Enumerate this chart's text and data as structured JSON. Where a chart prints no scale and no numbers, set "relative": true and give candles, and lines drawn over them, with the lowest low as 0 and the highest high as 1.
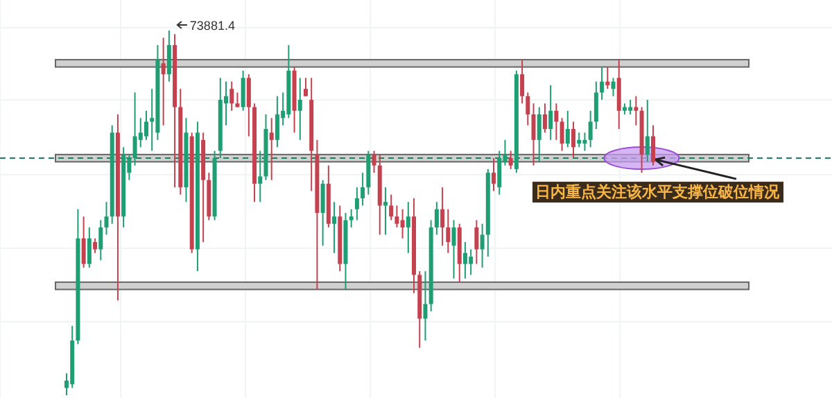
{
  "chart_data": {
    "type": "candlestick",
    "relative": true,
    "categories": [
      null,
      null,
      null,
      null,
      null,
      null,
      null,
      null,
      null,
      null,
      null,
      null,
      null,
      null,
      null,
      null,
      null,
      null,
      null,
      null,
      null,
      null,
      null,
      null,
      null,
      null,
      null,
      null,
      null,
      null,
      null,
      null,
      null,
      null,
      null,
      null,
      null,
      null,
      null,
      null,
      null,
      null,
      null,
      null,
      null,
      null,
      null,
      null,
      null,
      null,
      null,
      null,
      null,
      null,
      null,
      null,
      null,
      null,
      null,
      null,
      null,
      null,
      null,
      null,
      null,
      null,
      null,
      null,
      null,
      null,
      null,
      null,
      null,
      null,
      null,
      null,
      null,
      null,
      null,
      null,
      null,
      null,
      null,
      null,
      null,
      null,
      null,
      null,
      null,
      null,
      null,
      null,
      null,
      null,
      null,
      null,
      null,
      null,
      null,
      null,
      null,
      null,
      null,
      null
    ],
    "ohlc": [
      [
        0.02,
        0.06,
        0,
        0.04
      ],
      [
        0.03,
        0.19,
        0.02,
        0.15
      ],
      [
        0.15,
        0.51,
        0.14,
        0.43
      ],
      [
        0.43,
        0.49,
        0.35,
        0.36
      ],
      [
        0.36,
        0.46,
        0.35,
        0.43
      ],
      [
        0.42,
        0.43,
        0.39,
        0.4
      ],
      [
        0.4,
        0.48,
        0.37,
        0.46
      ],
      [
        0.46,
        0.53,
        0.44,
        0.49
      ],
      [
        0.49,
        0.74,
        0.47,
        0.72
      ],
      [
        0.72,
        0.77,
        0.26,
        0.49
      ],
      [
        0.49,
        0.68,
        0.46,
        0.66
      ],
      [
        0.61,
        0.66,
        0.59,
        0.65
      ],
      [
        0.65,
        0.83,
        0.63,
        0.71
      ],
      [
        0.7,
        0.76,
        0.68,
        0.72
      ],
      [
        0.71,
        0.78,
        0.7,
        0.75
      ],
      [
        0.75,
        0.84,
        0.67,
        0.76
      ],
      [
        0.72,
        0.96,
        0.7,
        0.92
      ],
      [
        0.91,
        0.98,
        0.74,
        0.88
      ],
      [
        0.88,
        1.0,
        0.86,
        0.96
      ],
      [
        0.96,
        0.99,
        0.57,
        0.79
      ],
      [
        0.79,
        0.84,
        0.55,
        0.57
      ],
      [
        0.57,
        0.76,
        0.53,
        0.72
      ],
      [
        0.71,
        0.72,
        0.39,
        0.4
      ],
      [
        0.4,
        0.75,
        0.34,
        0.72
      ],
      [
        0.7,
        0.72,
        0.42,
        0.59
      ],
      [
        0.59,
        0.61,
        0.48,
        0.49
      ],
      [
        0.49,
        0.67,
        0.48,
        0.65
      ],
      [
        0.67,
        0.87,
        0.65,
        0.81
      ],
      [
        0.8,
        0.86,
        0.74,
        0.82
      ],
      [
        0.84,
        0.86,
        0.78,
        0.8
      ],
      [
        0.8,
        0.83,
        0.79,
        0.79
      ],
      [
        0.79,
        0.89,
        0.78,
        0.87
      ],
      [
        0.87,
        0.88,
        0.71,
        0.79
      ],
      [
        0.79,
        0.8,
        0.53,
        0.58
      ],
      [
        0.58,
        0.67,
        0.53,
        0.6
      ],
      [
        0.6,
        0.77,
        0.59,
        0.73
      ],
      [
        0.72,
        0.76,
        0.59,
        0.7
      ],
      [
        0.7,
        0.82,
        0.68,
        0.77
      ],
      [
        0.76,
        0.83,
        0.74,
        0.78
      ],
      [
        0.77,
        0.96,
        0.76,
        0.89
      ],
      [
        0.89,
        0.9,
        0.72,
        0.78
      ],
      [
        0.78,
        0.87,
        0.7,
        0.81
      ],
      [
        0.84,
        0.87,
        0.82,
        0.82
      ],
      [
        0.81,
        0.87,
        0.56,
        0.67
      ],
      [
        0.66,
        0.7,
        0.29,
        0.5
      ],
      [
        0.5,
        0.59,
        0.41,
        0.58
      ],
      [
        0.58,
        0.63,
        0.46,
        0.47
      ],
      [
        0.47,
        0.53,
        0.39,
        0.49
      ],
      [
        0.49,
        0.52,
        0.34,
        0.36
      ],
      [
        0.36,
        0.5,
        0.29,
        0.48
      ],
      [
        0.48,
        0.51,
        0.46,
        0.49
      ],
      [
        0.51,
        0.57,
        0.48,
        0.54
      ],
      [
        0.54,
        0.61,
        0.52,
        0.57
      ],
      [
        0.57,
        0.67,
        0.55,
        0.66
      ],
      [
        0.66,
        0.67,
        0.61,
        0.63
      ],
      [
        0.63,
        0.66,
        0.44,
        0.52
      ],
      [
        0.52,
        0.57,
        0.44,
        0.53
      ],
      [
        0.52,
        0.55,
        0.48,
        0.49
      ],
      [
        0.49,
        0.52,
        0.46,
        0.47
      ],
      [
        0.48,
        0.51,
        0.43,
        0.46
      ],
      [
        0.46,
        0.53,
        0.39,
        0.49
      ],
      [
        0.49,
        0.54,
        0.28,
        0.33
      ],
      [
        0.33,
        0.34,
        0.13,
        0.21
      ],
      [
        0.21,
        0.34,
        0.15,
        0.25
      ],
      [
        0.25,
        0.48,
        0.23,
        0.46
      ],
      [
        0.46,
        0.53,
        0.44,
        0.51
      ],
      [
        0.51,
        0.57,
        0.41,
        0.46
      ],
      [
        0.46,
        0.51,
        0.39,
        0.42
      ],
      [
        0.41,
        0.48,
        0.32,
        0.46
      ],
      [
        0.46,
        0.47,
        0.31,
        0.36
      ],
      [
        0.36,
        0.42,
        0.32,
        0.39
      ],
      [
        0.36,
        0.4,
        0.33,
        0.38
      ],
      [
        0.46,
        0.48,
        0.36,
        0.4
      ],
      [
        0.4,
        0.47,
        0.35,
        0.44
      ],
      [
        0.44,
        0.62,
        0.38,
        0.61
      ],
      [
        0.61,
        0.65,
        0.56,
        0.58
      ],
      [
        0.57,
        0.67,
        0.55,
        0.65
      ],
      [
        0.64,
        0.7,
        0.63,
        0.66
      ],
      [
        0.65,
        0.67,
        0.62,
        0.63
      ],
      [
        0.62,
        0.89,
        0.61,
        0.88
      ],
      [
        0.88,
        0.92,
        0.8,
        0.82
      ],
      [
        0.82,
        0.83,
        0.74,
        0.77
      ],
      [
        0.77,
        0.8,
        0.63,
        0.7
      ],
      [
        0.7,
        0.79,
        0.64,
        0.77
      ],
      [
        0.77,
        0.8,
        0.72,
        0.73
      ],
      [
        0.73,
        0.85,
        0.7,
        0.78
      ],
      [
        0.78,
        0.8,
        0.7,
        0.75
      ],
      [
        0.75,
        0.76,
        0.67,
        0.69
      ],
      [
        0.69,
        0.78,
        0.68,
        0.73
      ],
      [
        0.73,
        0.75,
        0.65,
        0.68
      ],
      [
        0.69,
        0.72,
        0.68,
        0.7
      ],
      [
        0.69,
        0.72,
        0.67,
        0.7
      ],
      [
        0.7,
        0.78,
        0.68,
        0.75
      ],
      [
        0.75,
        0.86,
        0.73,
        0.83
      ],
      [
        0.83,
        0.9,
        0.81,
        0.86
      ],
      [
        0.86,
        0.9,
        0.84,
        0.85
      ],
      [
        0.84,
        0.87,
        0.82,
        0.86
      ],
      [
        0.87,
        0.92,
        0.73,
        0.78
      ],
      [
        0.78,
        0.8,
        0.77,
        0.79
      ],
      [
        0.78,
        0.81,
        0.77,
        0.79
      ],
      [
        0.79,
        0.82,
        0.74,
        0.78
      ],
      [
        0.78,
        0.79,
        0.61,
        0.66
      ],
      [
        0.66,
        0.81,
        0.64,
        0.71
      ],
      [
        0.71,
        0.74,
        0.63,
        0.64
      ]
    ],
    "bands": [
      {
        "axis": "y",
        "from": 0.9,
        "to": 0.92,
        "color": "#d0d0d0"
      },
      {
        "axis": "y",
        "from": 0.64,
        "to": 0.66,
        "color": "#d0d0d0"
      },
      {
        "axis": "y",
        "from": 0.29,
        "to": 0.31,
        "color": "#d0d0d0"
      }
    ],
    "ref_lines": [
      {
        "axis": "y",
        "value": 0.65,
        "color": "#1a7f5a",
        "line_style": "dashed"
      }
    ],
    "annotations": [
      "73881.4",
      {
        "text": "日内重点关注该水平支撑位破位情况",
        "y": 0.65
      }
    ]
  }
}
